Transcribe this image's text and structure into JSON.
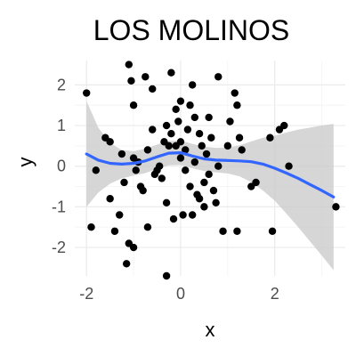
{
  "chart_data": {
    "type": "scatter",
    "title": "LOS MOLINOS",
    "xlabel": "x",
    "ylabel": "y",
    "xlim": [
      -2.25,
      3.5
    ],
    "ylim": [
      -2.7,
      2.6
    ],
    "x_ticks": [
      -2,
      0,
      2
    ],
    "y_ticks": [
      -2,
      -1,
      0,
      1,
      2
    ],
    "grid": true,
    "colors": {
      "points": "#000000",
      "smooth": "#3366ff",
      "band": "#c8c8c8",
      "grid_major": "#ebebeb",
      "grid_minor": "#f5f5f5"
    },
    "points": [
      [
        -2.0,
        1.8
      ],
      [
        -1.9,
        -1.5
      ],
      [
        -1.8,
        -0.1
      ],
      [
        -1.6,
        0.7
      ],
      [
        -1.5,
        0.6
      ],
      [
        -1.4,
        -1.6
      ],
      [
        -1.3,
        -1.2
      ],
      [
        -1.25,
        0.3
      ],
      [
        -1.2,
        -0.4
      ],
      [
        -1.15,
        -2.4
      ],
      [
        -1.1,
        2.5
      ],
      [
        -1.05,
        2.1
      ],
      [
        -1.1,
        -1.9
      ],
      [
        -1.0,
        -2.0
      ],
      [
        -1.0,
        1.5
      ],
      [
        -1.0,
        0.2
      ],
      [
        -0.95,
        -0.1
      ],
      [
        -0.9,
        0.1
      ],
      [
        -0.85,
        -0.5
      ],
      [
        -0.8,
        -0.6
      ],
      [
        -0.75,
        2.2
      ],
      [
        -0.7,
        -1.5
      ],
      [
        -0.7,
        0.4
      ],
      [
        -0.6,
        1.9
      ],
      [
        -0.55,
        -0.2
      ],
      [
        -0.5,
        -0.1
      ],
      [
        -0.45,
        0.0
      ],
      [
        -0.4,
        -0.3
      ],
      [
        -0.35,
        0.6
      ],
      [
        -0.3,
        1.0
      ],
      [
        -0.3,
        -0.9
      ],
      [
        -0.25,
        0.5
      ],
      [
        -0.2,
        2.3
      ],
      [
        -0.2,
        0.8
      ],
      [
        -0.15,
        -1.3
      ],
      [
        -0.1,
        1.4
      ],
      [
        -0.1,
        0.5
      ],
      [
        -0.05,
        1.1
      ],
      [
        0.0,
        1.6
      ],
      [
        0.0,
        0.2
      ],
      [
        0.05,
        -1.2
      ],
      [
        0.1,
        0.4
      ],
      [
        0.1,
        -0.1
      ],
      [
        0.15,
        0.9
      ],
      [
        0.2,
        1.5
      ],
      [
        0.2,
        -0.5
      ],
      [
        0.25,
        2.0
      ],
      [
        0.25,
        -1.2
      ],
      [
        0.3,
        0.1
      ],
      [
        0.3,
        1.2
      ],
      [
        0.35,
        -0.7
      ],
      [
        0.4,
        -0.8
      ],
      [
        0.4,
        0.8
      ],
      [
        0.45,
        0.5
      ],
      [
        0.5,
        -0.4
      ],
      [
        0.5,
        -1.0
      ],
      [
        0.55,
        0.3
      ],
      [
        0.6,
        1.2
      ],
      [
        0.6,
        -0.2
      ],
      [
        0.65,
        0.7
      ],
      [
        0.7,
        -0.6
      ],
      [
        0.75,
        -0.9
      ],
      [
        0.8,
        2.2
      ],
      [
        0.8,
        0.0
      ],
      [
        0.9,
        -1.6
      ],
      [
        1.0,
        0.5
      ],
      [
        1.05,
        1.1
      ],
      [
        1.15,
        1.8
      ],
      [
        1.2,
        1.5
      ],
      [
        1.2,
        -1.6
      ],
      [
        1.25,
        0.7
      ],
      [
        1.3,
        0.4
      ],
      [
        1.5,
        -0.5
      ],
      [
        1.6,
        -0.4
      ],
      [
        1.9,
        0.7
      ],
      [
        1.95,
        -1.6
      ],
      [
        2.1,
        0.9
      ],
      [
        2.2,
        1.0
      ],
      [
        2.3,
        0.0
      ],
      [
        3.3,
        -1.0
      ],
      [
        -0.3,
        -2.7
      ],
      [
        -1.5,
        -0.8
      ],
      [
        0.0,
        0.6
      ],
      [
        -0.6,
        0.9
      ]
    ],
    "smooth_curve": [
      [
        -2.0,
        0.3
      ],
      [
        -1.75,
        0.15
      ],
      [
        -1.5,
        0.07
      ],
      [
        -1.25,
        0.05
      ],
      [
        -1.0,
        0.07
      ],
      [
        -0.75,
        0.13
      ],
      [
        -0.5,
        0.23
      ],
      [
        -0.25,
        0.32
      ],
      [
        0.0,
        0.33
      ],
      [
        0.25,
        0.25
      ],
      [
        0.5,
        0.18
      ],
      [
        0.75,
        0.15
      ],
      [
        1.0,
        0.14
      ],
      [
        1.25,
        0.13
      ],
      [
        1.5,
        0.11
      ],
      [
        1.75,
        0.05
      ],
      [
        2.0,
        -0.05
      ],
      [
        2.25,
        -0.17
      ],
      [
        2.5,
        -0.3
      ],
      [
        2.75,
        -0.45
      ],
      [
        3.0,
        -0.6
      ],
      [
        3.25,
        -0.76
      ]
    ],
    "band_halfwidth": [
      [
        -2.0,
        1.3
      ],
      [
        -1.75,
        0.8
      ],
      [
        -1.5,
        0.5
      ],
      [
        -1.25,
        0.35
      ],
      [
        -1.0,
        0.3
      ],
      [
        -0.75,
        0.3
      ],
      [
        -0.5,
        0.3
      ],
      [
        -0.25,
        0.3
      ],
      [
        0.0,
        0.3
      ],
      [
        0.25,
        0.3
      ],
      [
        0.5,
        0.3
      ],
      [
        0.75,
        0.3
      ],
      [
        1.0,
        0.32
      ],
      [
        1.25,
        0.38
      ],
      [
        1.5,
        0.5
      ],
      [
        1.75,
        0.65
      ],
      [
        2.0,
        0.8
      ],
      [
        2.25,
        1.0
      ],
      [
        2.5,
        1.2
      ],
      [
        2.75,
        1.4
      ],
      [
        3.0,
        1.6
      ],
      [
        3.25,
        1.8
      ]
    ]
  }
}
